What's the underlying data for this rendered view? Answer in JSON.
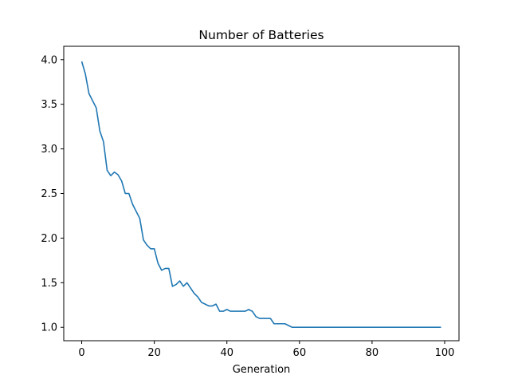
{
  "chart_data": {
    "type": "line",
    "title": "Number of Batteries",
    "xlabel": "Generation",
    "ylabel": "",
    "xlim": [
      -4.95,
      103.95
    ],
    "ylim": [
      0.85,
      4.15
    ],
    "xticks": [
      0,
      20,
      40,
      60,
      80,
      100
    ],
    "yticks": [
      1.0,
      1.5,
      2.0,
      2.5,
      3.0,
      3.5,
      4.0
    ],
    "xtick_labels": [
      "0",
      "20",
      "40",
      "60",
      "80",
      "100"
    ],
    "ytick_labels": [
      "1.0",
      "1.5",
      "2.0",
      "2.5",
      "3.0",
      "3.5",
      "4.0"
    ],
    "grid": false,
    "legend": "none",
    "series": [
      {
        "color": "#1f77b4",
        "x": [
          0,
          1,
          2,
          3,
          4,
          5,
          6,
          7,
          8,
          9,
          10,
          11,
          12,
          13,
          14,
          15,
          16,
          17,
          18,
          19,
          20,
          21,
          22,
          23,
          24,
          25,
          26,
          27,
          28,
          29,
          30,
          31,
          32,
          33,
          34,
          35,
          36,
          37,
          38,
          39,
          40,
          41,
          42,
          43,
          44,
          45,
          46,
          47,
          48,
          49,
          50,
          51,
          52,
          53,
          54,
          55,
          56,
          57,
          58,
          59,
          60,
          61,
          62,
          63,
          64,
          65,
          66,
          67,
          68,
          69,
          70,
          71,
          72,
          73,
          74,
          75,
          76,
          77,
          78,
          79,
          80,
          81,
          82,
          83,
          84,
          85,
          86,
          87,
          88,
          89,
          90,
          91,
          92,
          93,
          94,
          95,
          96,
          97,
          98,
          99
        ],
        "y": [
          3.98,
          3.84,
          3.62,
          3.54,
          3.46,
          3.2,
          3.08,
          2.76,
          2.7,
          2.74,
          2.71,
          2.64,
          2.5,
          2.5,
          2.38,
          2.3,
          2.22,
          1.98,
          1.92,
          1.88,
          1.88,
          1.72,
          1.64,
          1.66,
          1.66,
          1.46,
          1.48,
          1.52,
          1.46,
          1.5,
          1.44,
          1.38,
          1.34,
          1.28,
          1.26,
          1.24,
          1.24,
          1.26,
          1.18,
          1.18,
          1.2,
          1.18,
          1.18,
          1.18,
          1.18,
          1.18,
          1.2,
          1.18,
          1.12,
          1.1,
          1.1,
          1.1,
          1.1,
          1.04,
          1.04,
          1.04,
          1.04,
          1.02,
          1.0,
          1.0,
          1.0,
          1.0,
          1.0,
          1.0,
          1.0,
          1.0,
          1.0,
          1.0,
          1.0,
          1.0,
          1.0,
          1.0,
          1.0,
          1.0,
          1.0,
          1.0,
          1.0,
          1.0,
          1.0,
          1.0,
          1.0,
          1.0,
          1.0,
          1.0,
          1.0,
          1.0,
          1.0,
          1.0,
          1.0,
          1.0,
          1.0,
          1.0,
          1.0,
          1.0,
          1.0,
          1.0,
          1.0,
          1.0,
          1.0,
          1.0
        ]
      }
    ]
  }
}
